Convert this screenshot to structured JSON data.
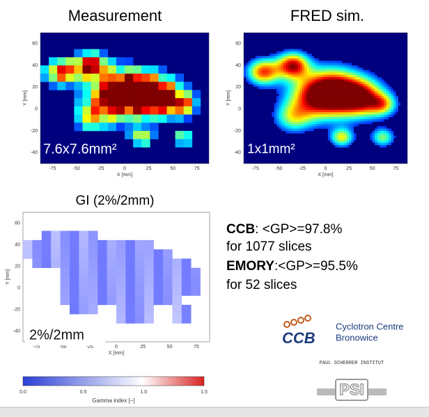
{
  "panels": [
    {
      "title": "Measurement",
      "resolution": "7.6x7.6mm²"
    },
    {
      "title": "FRED sim.",
      "resolution": "1x1mm²"
    },
    {
      "title": "GI (2%/2mm)",
      "resolution": "2%/2mm"
    }
  ],
  "axes": {
    "x_label": "X [mm]",
    "y_label": "Y [mm]",
    "x_ticks": [
      "-75",
      "-50",
      "-25",
      "0",
      "25",
      "50",
      "75"
    ],
    "y_ticks": [
      "60",
      "40",
      "20",
      "0",
      "-20",
      "-40"
    ]
  },
  "colorbar": {
    "ticks": [
      "0.0",
      "0.5",
      "1.0",
      "1.5"
    ],
    "label": "Gamma index [−]"
  },
  "results": [
    {
      "name": "CCB",
      "text": ": <GP>=97.8%",
      "slices": "for 1077 slices"
    },
    {
      "name": "EMORY",
      "text": ":<GP>=95.5%",
      "slices": "for 52 slices"
    }
  ],
  "logos": {
    "ccb_line1": "Cyclotron Centre",
    "ccb_line2": "Bronowice",
    "ccb_mark": "CCB",
    "psi_name": "PAUL SCHERRER INSTITUT",
    "psi_mark": "PSI"
  }
}
